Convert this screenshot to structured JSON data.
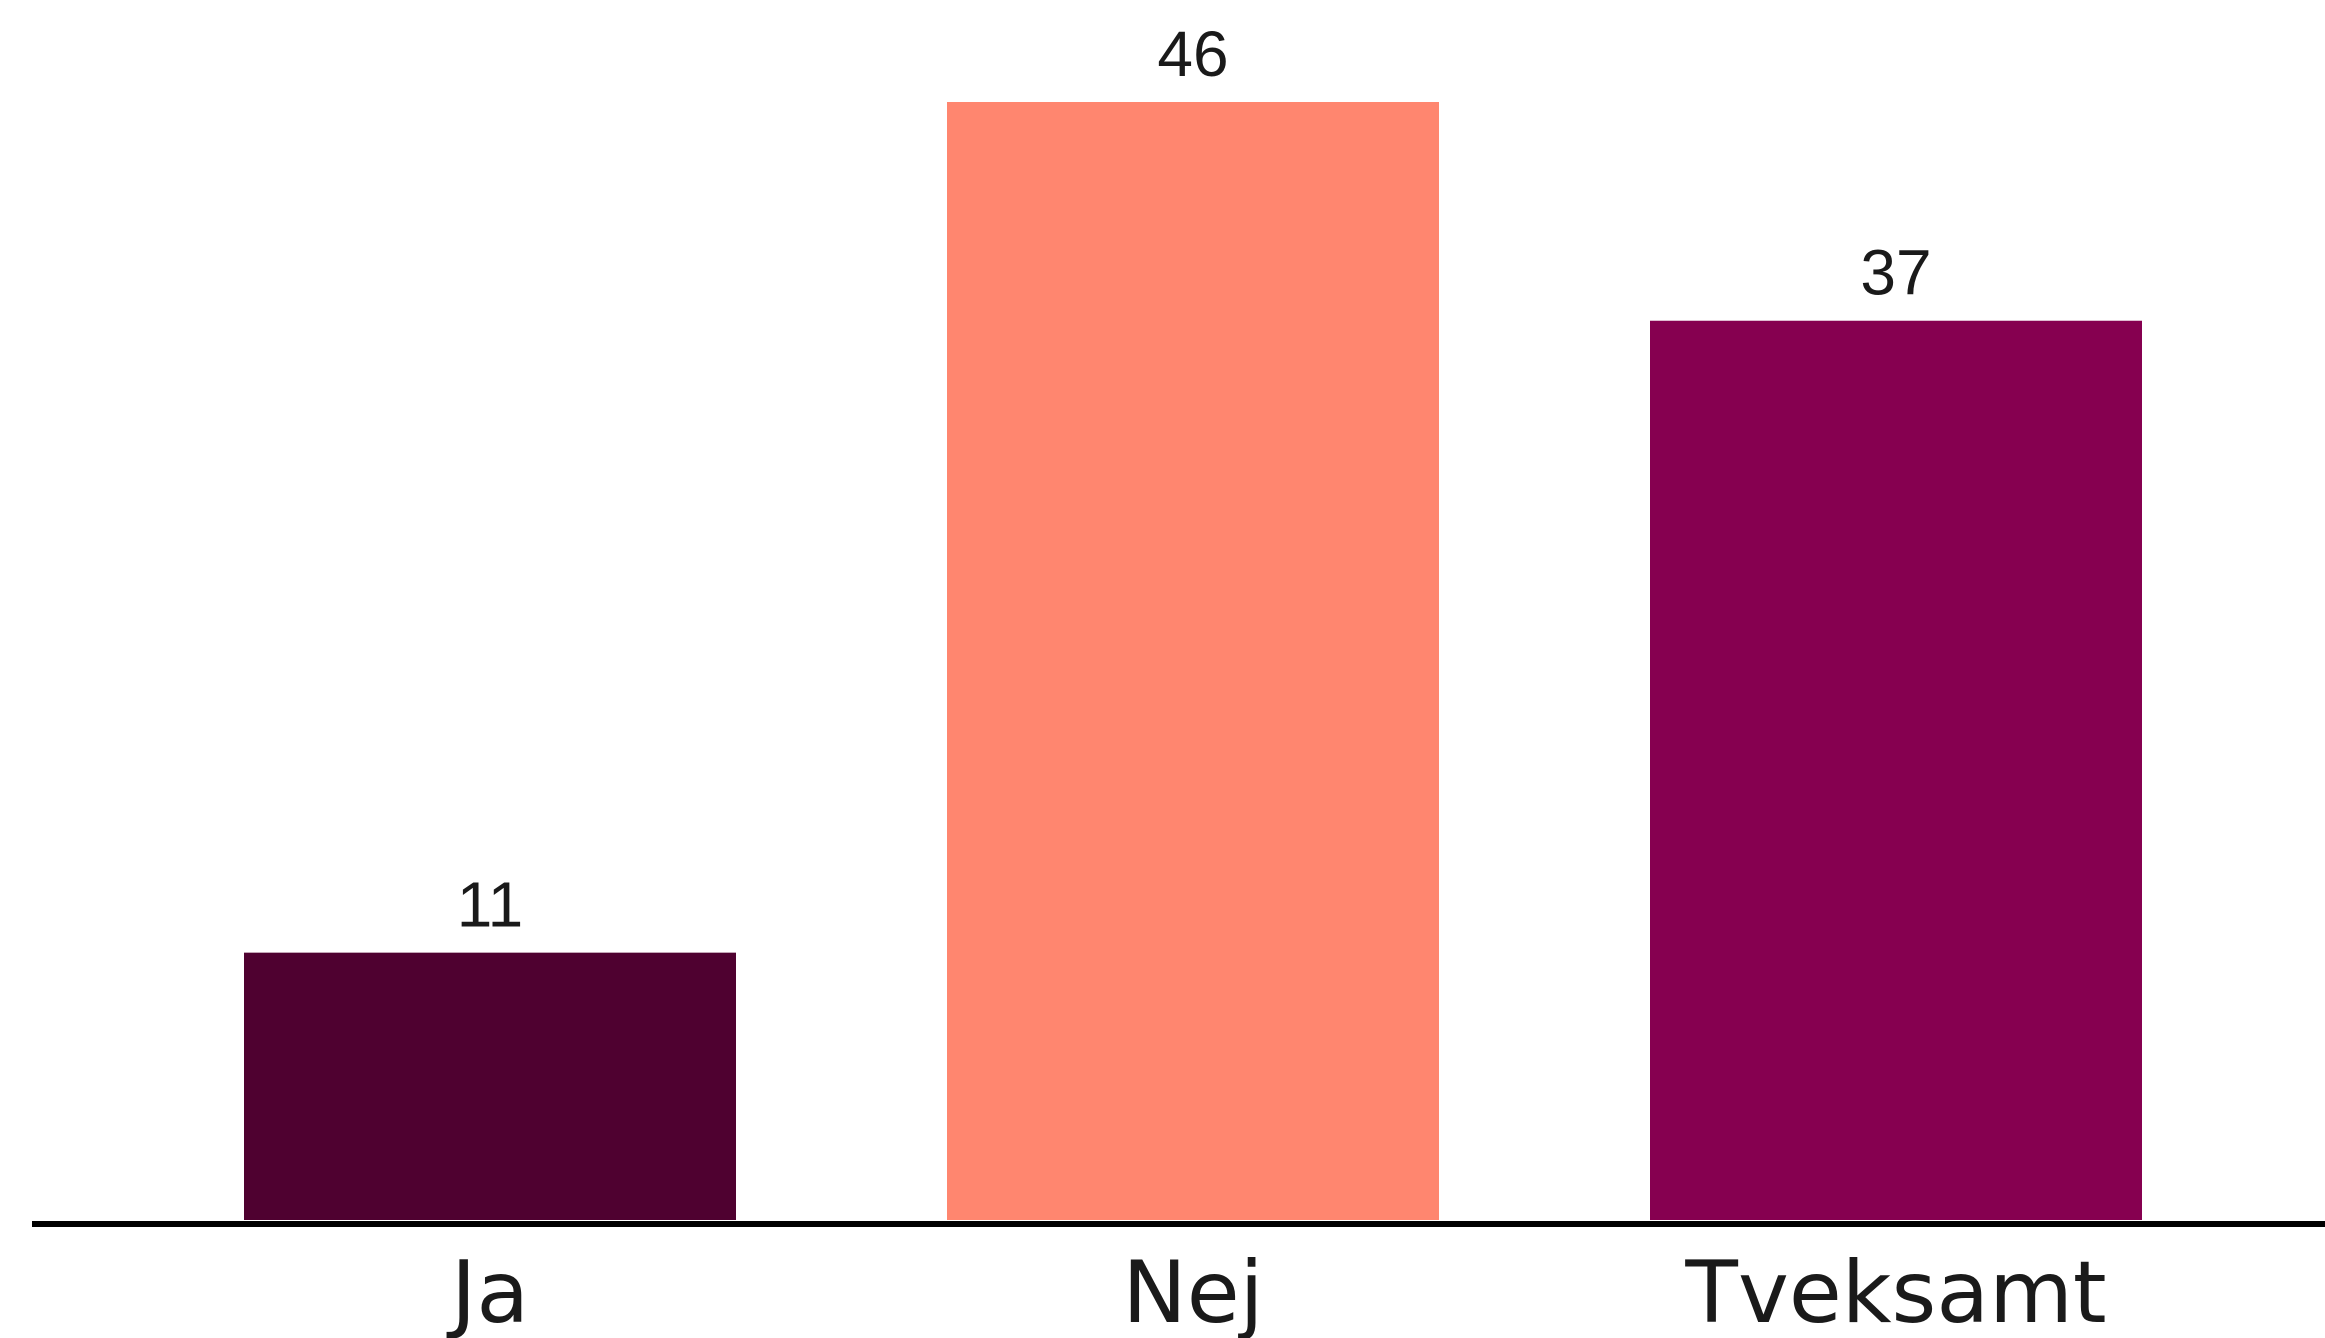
{
  "chart_data": {
    "type": "bar",
    "title": "",
    "xlabel": "",
    "ylabel": "",
    "categories": [
      "Ja",
      "Nej",
      "Tveksamt"
    ],
    "values": [
      11,
      46,
      37
    ],
    "value_labels": [
      "11",
      "46",
      "37"
    ],
    "ylim": [
      0,
      46
    ],
    "grid": false,
    "legend": "none",
    "colors": [
      "#4f0130",
      "#ff866f",
      "#860050"
    ],
    "axis_color": "#000000"
  }
}
